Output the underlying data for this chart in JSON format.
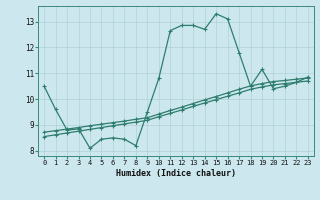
{
  "xlabel": "Humidex (Indice chaleur)",
  "bg_color": "#cce8ee",
  "line_color": "#2e7d6e",
  "grid_color": "#b0d0d8",
  "xlim": [
    -0.5,
    23.5
  ],
  "ylim": [
    7.8,
    13.6
  ],
  "yticks": [
    8,
    9,
    10,
    11,
    12,
    13
  ],
  "xticks": [
    0,
    1,
    2,
    3,
    4,
    5,
    6,
    7,
    8,
    9,
    10,
    11,
    12,
    13,
    14,
    15,
    16,
    17,
    18,
    19,
    20,
    21,
    22,
    23
  ],
  "curve1_x": [
    0,
    1,
    2,
    3,
    4,
    5,
    6,
    7,
    8,
    9,
    10,
    11,
    12,
    13,
    14,
    15,
    16,
    17,
    18,
    19,
    20,
    21,
    22,
    23
  ],
  "curve1_y": [
    10.5,
    9.6,
    8.8,
    8.85,
    8.1,
    8.45,
    8.5,
    8.45,
    8.2,
    9.5,
    10.8,
    12.65,
    12.85,
    12.85,
    12.7,
    13.3,
    13.1,
    11.8,
    10.5,
    11.15,
    10.4,
    10.5,
    10.65,
    10.85
  ],
  "curve2_x": [
    0,
    1,
    2,
    3,
    4,
    5,
    6,
    7,
    8,
    9,
    10,
    11,
    12,
    13,
    14,
    15,
    16,
    17,
    18,
    19,
    20,
    21,
    22,
    23
  ],
  "curve2_y": [
    8.72,
    8.78,
    8.84,
    8.9,
    8.97,
    9.03,
    9.09,
    9.15,
    9.22,
    9.28,
    9.42,
    9.56,
    9.69,
    9.83,
    9.97,
    10.1,
    10.24,
    10.38,
    10.51,
    10.6,
    10.68,
    10.72,
    10.77,
    10.82
  ],
  "curve3_x": [
    0,
    1,
    2,
    3,
    4,
    5,
    6,
    7,
    8,
    9,
    10,
    11,
    12,
    13,
    14,
    15,
    16,
    17,
    18,
    19,
    20,
    21,
    22,
    23
  ],
  "curve3_y": [
    8.55,
    8.62,
    8.69,
    8.76,
    8.83,
    8.9,
    8.97,
    9.04,
    9.11,
    9.18,
    9.32,
    9.45,
    9.58,
    9.72,
    9.85,
    9.98,
    10.11,
    10.24,
    10.38,
    10.47,
    10.55,
    10.6,
    10.65,
    10.7
  ]
}
